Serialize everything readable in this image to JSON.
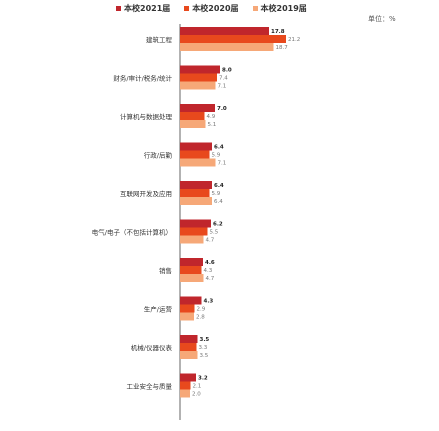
{
  "unit_label": "单位：%",
  "chart_data": {
    "type": "bar",
    "orientation": "horizontal",
    "categories": [
      "建筑工程",
      "财务/审计/税务/统计",
      "计算机与数据处理",
      "行政/后勤",
      "互联网开发及应用",
      "电气/电子（不包括计算机）",
      "销售",
      "生产/运营",
      "机械/仪器仪表",
      "工业安全与质量"
    ],
    "series": [
      {
        "name": "本校2021届",
        "color": "#c0262c",
        "values": [
          17.8,
          8.0,
          7.0,
          6.4,
          6.4,
          6.2,
          4.6,
          4.3,
          3.5,
          3.2
        ]
      },
      {
        "name": "本校2020届",
        "color": "#e8491d",
        "values": [
          21.2,
          7.4,
          4.9,
          5.9,
          5.9,
          5.5,
          4.3,
          2.9,
          3.3,
          2.1
        ]
      },
      {
        "name": "本校2019届",
        "color": "#f6a878",
        "values": [
          18.7,
          7.1,
          5.1,
          7.1,
          6.4,
          4.7,
          4.7,
          2.8,
          3.5,
          2.0
        ]
      }
    ],
    "value_labels": [
      [
        "17.8",
        "8.0",
        "7.0",
        "6.4",
        "6.4",
        "6.2",
        "4.6",
        "4.3",
        "3.5",
        "3.2"
      ],
      [
        "21.2",
        "7.4",
        "4.9",
        "5.9",
        "5.9",
        "5.5",
        "4.3",
        "2.9",
        "3.3",
        "2.1"
      ],
      [
        "18.7",
        "7.1",
        "5.1",
        "7.1",
        "6.4",
        "4.7",
        "4.7",
        "2.8",
        "3.5",
        "2.0"
      ]
    ]
  }
}
